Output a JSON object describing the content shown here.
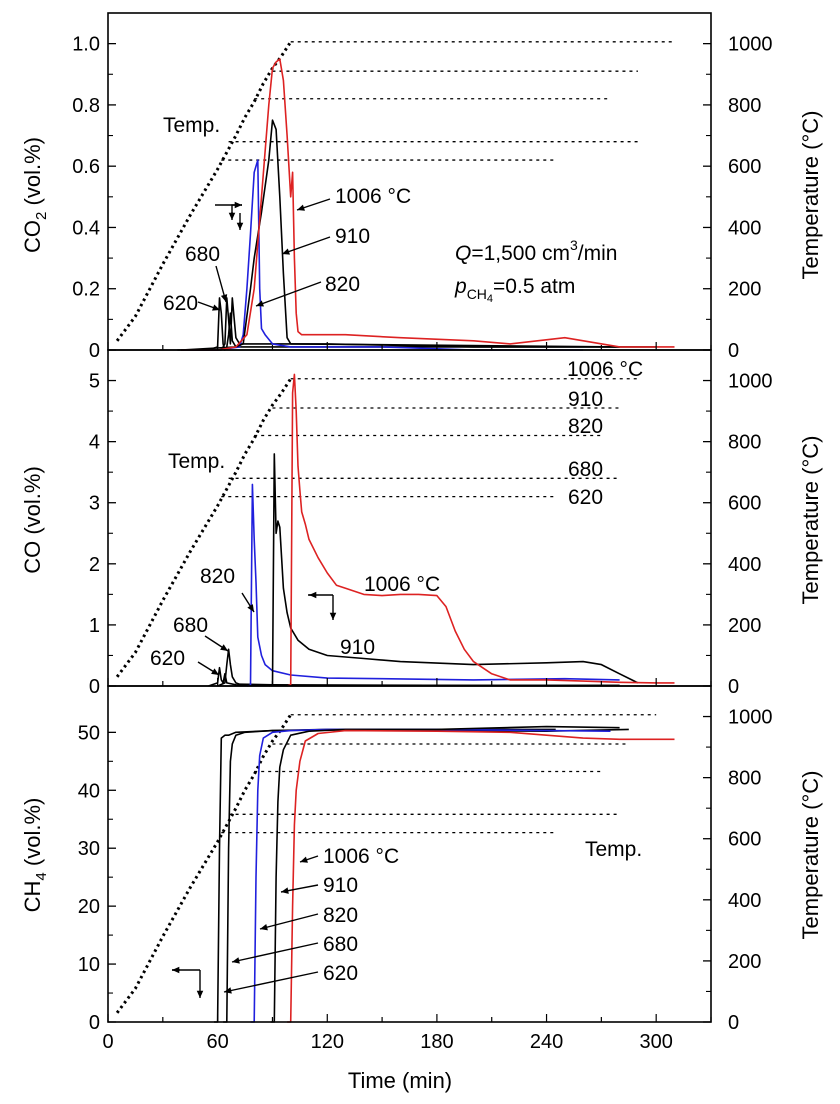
{
  "chart_data": [
    {
      "type": "line",
      "panel": "CO2",
      "ylabel": "CO₂ (vol.%)",
      "ylabel_main": "CO",
      "ylabel_sub": "2",
      "ylabel_rest": " (vol.%)",
      "y2label": "Temperature (°C)",
      "xlim": [
        0,
        330
      ],
      "ylim": [
        0,
        1.1
      ],
      "y2lim": [
        0,
        1100
      ],
      "yticks": [
        "0",
        "0.2",
        "0.4",
        "0.6",
        "0.8",
        "1.0"
      ],
      "y2ticks": [
        "0",
        "200",
        "400",
        "600",
        "800",
        "1000"
      ],
      "series": [
        {
          "name": "620",
          "color": "#000000",
          "x": [
            38,
            55,
            60,
            61,
            62,
            63,
            64,
            65,
            66,
            67,
            68,
            70,
            80,
            300
          ],
          "values": [
            0,
            0,
            0.01,
            0.17,
            0.12,
            0.02,
            0.0,
            0.01,
            0.05,
            0.12,
            0.03,
            0.01,
            0.01,
            0.01
          ]
        },
        {
          "name": "680",
          "color": "#000000",
          "x": [
            40,
            62,
            64,
            65,
            66,
            67,
            68,
            70,
            72,
            75,
            100,
            280
          ],
          "values": [
            0,
            0,
            0.02,
            0.17,
            0.1,
            0.02,
            0.17,
            0.04,
            0.02,
            0.02,
            0.02,
            0.01
          ]
        },
        {
          "name": "820",
          "color": "#2020dd",
          "x": [
            40,
            60,
            72,
            74,
            76,
            78,
            80,
            82,
            83,
            84,
            86,
            90,
            100,
            150,
            200,
            260
          ],
          "values": [
            0,
            0,
            0.01,
            0.05,
            0.2,
            0.38,
            0.58,
            0.62,
            0.2,
            0.07,
            0.05,
            0.02,
            0.01,
            0.01,
            0.0,
            0.0
          ]
        },
        {
          "name": "910",
          "color": "#000000",
          "x": [
            40,
            70,
            74,
            78,
            80,
            84,
            88,
            90,
            92,
            94,
            96,
            98,
            100,
            120,
            200,
            280
          ],
          "values": [
            0,
            0.01,
            0.02,
            0.2,
            0.3,
            0.45,
            0.62,
            0.75,
            0.72,
            0.5,
            0.25,
            0.04,
            0.02,
            0.02,
            0.01,
            0.01
          ]
        },
        {
          "name": "1006 °C",
          "color": "#dd2222",
          "x": [
            40,
            60,
            70,
            76,
            80,
            84,
            88,
            90,
            92,
            94,
            96,
            98,
            100,
            101,
            102,
            103,
            104,
            106,
            110,
            130,
            160,
            200,
            220,
            250,
            280,
            310
          ],
          "values": [
            0,
            0,
            0.01,
            0.05,
            0.2,
            0.5,
            0.8,
            0.92,
            0.94,
            0.95,
            0.88,
            0.7,
            0.5,
            0.58,
            0.3,
            0.12,
            0.06,
            0.05,
            0.05,
            0.05,
            0.04,
            0.03,
            0.02,
            0.04,
            0.01,
            0.01
          ]
        }
      ],
      "temperature": {
        "ramp": {
          "x": [
            5,
            15,
            30,
            45,
            60,
            70,
            75,
            80,
            85,
            90,
            95,
            100
          ],
          "values": [
            30,
            110,
            280,
            440,
            590,
            700,
            760,
            810,
            870,
            920,
            960,
            1006
          ]
        },
        "plateaus": [
          {
            "x": [
              62,
              245
            ],
            "value": 620
          },
          {
            "x": [
              66,
              290
            ],
            "value": 680
          },
          {
            "x": [
              80,
              275
            ],
            "value": 820
          },
          {
            "x": [
              90,
              290
            ],
            "value": 910
          },
          {
            "x": [
              100,
              310
            ],
            "value": 1006
          }
        ]
      },
      "annotations": {
        "temp": "Temp.",
        "t1006": "1006 °C",
        "t910": "910",
        "t820": "820",
        "t680": "680",
        "t620": "620",
        "q_line": "Q=1,500 cm³/min",
        "q_sym": "Q",
        "q_body": "=1,500 cm",
        "q_sup": "3",
        "q_unit": "/min",
        "p_line": "pCH₄=0.5 atm",
        "p_sym": "p",
        "p_sub": "CH",
        "p_sub2": "4",
        "p_val": "=0.5 atm"
      }
    },
    {
      "type": "line",
      "panel": "CO",
      "ylabel": "CO (vol.%)",
      "y2label": "Temperature (°C)",
      "xlim": [
        0,
        330
      ],
      "ylim": [
        0,
        5.5
      ],
      "y2lim": [
        0,
        1100
      ],
      "yticks": [
        "0",
        "1",
        "2",
        "3",
        "4",
        "5"
      ],
      "y2ticks": [
        "0",
        "200",
        "400",
        "600",
        "800",
        "1000"
      ],
      "series": [
        {
          "name": "620",
          "color": "#000000",
          "x": [
            55,
            60,
            61,
            62,
            63,
            64,
            65,
            70,
            100,
            200,
            280
          ],
          "values": [
            0,
            0.05,
            0.3,
            0.1,
            0.05,
            0.2,
            0.05,
            0.02,
            0.01,
            0.01,
            0.01
          ]
        },
        {
          "name": "680",
          "color": "#000000",
          "x": [
            60,
            64,
            65,
            66,
            67,
            68,
            70,
            72,
            90,
            200,
            280
          ],
          "values": [
            0,
            0.05,
            0.35,
            0.6,
            0.35,
            0.15,
            0.05,
            0.03,
            0.02,
            0.01,
            0.01
          ]
        },
        {
          "name": "820",
          "color": "#2020dd",
          "x": [
            76,
            78,
            79,
            80,
            81,
            82,
            84,
            86,
            90,
            100,
            120,
            150,
            200,
            250,
            280
          ],
          "values": [
            0,
            0.01,
            3.3,
            2.4,
            1.7,
            0.8,
            0.5,
            0.35,
            0.25,
            0.18,
            0.13,
            0.12,
            0.1,
            0.12,
            0.1
          ]
        },
        {
          "name": "910",
          "color": "#000000",
          "x": [
            88,
            90,
            91,
            92,
            93,
            94,
            95,
            96,
            98,
            100,
            104,
            110,
            120,
            140,
            160,
            200,
            240,
            260,
            270,
            280,
            290
          ],
          "values": [
            0,
            0.02,
            3.8,
            2.5,
            2.7,
            2.6,
            2.1,
            1.6,
            1.2,
            0.95,
            0.75,
            0.6,
            0.5,
            0.45,
            0.4,
            0.35,
            0.38,
            0.4,
            0.35,
            0.2,
            0.05
          ]
        },
        {
          "name": "1006 °C",
          "color": "#dd2222",
          "x": [
            98,
            100,
            101,
            102,
            103,
            104,
            105,
            106,
            108,
            110,
            115,
            120,
            125,
            130,
            140,
            150,
            160,
            170,
            180,
            185,
            190,
            195,
            200,
            210,
            220,
            240,
            260,
            280,
            300,
            310
          ],
          "values": [
            0,
            0.02,
            4.8,
            5.1,
            4.5,
            3.6,
            3.2,
            2.85,
            2.65,
            2.4,
            2.1,
            1.85,
            1.65,
            1.6,
            1.5,
            1.48,
            1.5,
            1.5,
            1.48,
            1.3,
            0.9,
            0.6,
            0.4,
            0.2,
            0.1,
            0.1,
            0.08,
            0.06,
            0.05,
            0.05
          ]
        }
      ],
      "temperature": {
        "ramp": {
          "x": [
            5,
            15,
            30,
            45,
            60,
            70,
            75,
            80,
            85,
            90,
            95,
            100
          ],
          "values": [
            30,
            110,
            280,
            440,
            590,
            700,
            760,
            810,
            870,
            920,
            960,
            1006
          ]
        },
        "plateaus": [
          {
            "x": [
              62,
              245
            ],
            "value": 620
          },
          {
            "x": [
              66,
              280
            ],
            "value": 680
          },
          {
            "x": [
              80,
              270
            ],
            "value": 820
          },
          {
            "x": [
              90,
              280
            ],
            "value": 910
          },
          {
            "x": [
              100,
              290
            ],
            "value": 1006
          }
        ]
      },
      "annotations": {
        "temp": "Temp.",
        "t1006_top": "1006 °C",
        "t910_top": "910",
        "t820_top": "820",
        "t680_top": "680",
        "t620_top": "620",
        "t1006": "1006 °C",
        "t910": "910",
        "t820": "820",
        "t680": "680",
        "t620": "620"
      }
    },
    {
      "type": "line",
      "panel": "CH4",
      "ylabel": "CH₄ (vol.%)",
      "ylabel_main": "CH",
      "ylabel_sub": "4",
      "ylabel_rest": " (vol.%)",
      "y2label": "Temperature (°C)",
      "xlabel": "Time (min)",
      "xlim": [
        0,
        330
      ],
      "ylim": [
        0,
        58
      ],
      "y2lim": [
        0,
        1100
      ],
      "xticks": [
        "0",
        "60",
        "120",
        "180",
        "240",
        "300"
      ],
      "yticks": [
        "0",
        "10",
        "20",
        "30",
        "40",
        "50"
      ],
      "y2ticks": [
        "0",
        "200",
        "400",
        "600",
        "800",
        "1000"
      ],
      "series": [
        {
          "name": "620",
          "color": "#000000",
          "x": [
            58,
            60,
            61,
            62,
            64,
            66,
            70,
            90,
            120,
            180,
            240,
            245
          ],
          "values": [
            0,
            0,
            30,
            49,
            49.5,
            49.5,
            50,
            50.3,
            50.5,
            50.5,
            50.5,
            50.5
          ]
        },
        {
          "name": "680",
          "color": "#000000",
          "x": [
            63,
            65,
            66,
            67,
            68,
            70,
            75,
            90,
            120,
            180,
            240,
            285
          ],
          "values": [
            0,
            0,
            30,
            45,
            48,
            49.5,
            50,
            50.3,
            50.4,
            50.3,
            50.2,
            50.5
          ]
        },
        {
          "name": "820",
          "color": "#2020dd",
          "x": [
            78,
            80,
            81,
            82,
            83,
            85,
            90,
            100,
            120,
            180,
            240,
            275
          ],
          "values": [
            0,
            0,
            25,
            40,
            46,
            49,
            50,
            50.3,
            50.5,
            50.5,
            50.3,
            50.2
          ]
        },
        {
          "name": "910",
          "color": "#000000",
          "x": [
            89,
            91,
            92,
            93,
            94,
            96,
            100,
            110,
            130,
            180,
            240,
            280
          ],
          "values": [
            0,
            0,
            25,
            38,
            44,
            47,
            49.5,
            50.2,
            50.5,
            50.5,
            51,
            50.8
          ]
        },
        {
          "name": "1006 °C",
          "color": "#dd2222",
          "x": [
            98,
            100,
            101,
            102,
            103,
            105,
            108,
            115,
            130,
            180,
            220,
            240,
            260,
            280,
            300,
            310
          ],
          "values": [
            0,
            0,
            20,
            34,
            40,
            45,
            48.5,
            49.8,
            50.3,
            50.2,
            50,
            49.5,
            49,
            48.8,
            48.8,
            48.8
          ]
        }
      ],
      "temperature": {
        "ramp": {
          "x": [
            5,
            15,
            30,
            45,
            60,
            70,
            75,
            80,
            85,
            90,
            95,
            100
          ],
          "values": [
            30,
            110,
            280,
            440,
            590,
            700,
            760,
            810,
            870,
            920,
            960,
            1006
          ]
        },
        "plateaus": [
          {
            "x": [
              62,
              245
            ],
            "value": 620
          },
          {
            "x": [
              66,
              280
            ],
            "value": 680
          },
          {
            "x": [
              80,
              270
            ],
            "value": 820
          },
          {
            "x": [
              90,
              285
            ],
            "value": 910
          },
          {
            "x": [
              100,
              300
            ],
            "value": 1006
          }
        ]
      },
      "annotations": {
        "temp": "Temp.",
        "t1006": "1006 °C",
        "t910": "910",
        "t820": "820",
        "t680": "680",
        "t620": "620"
      }
    }
  ]
}
